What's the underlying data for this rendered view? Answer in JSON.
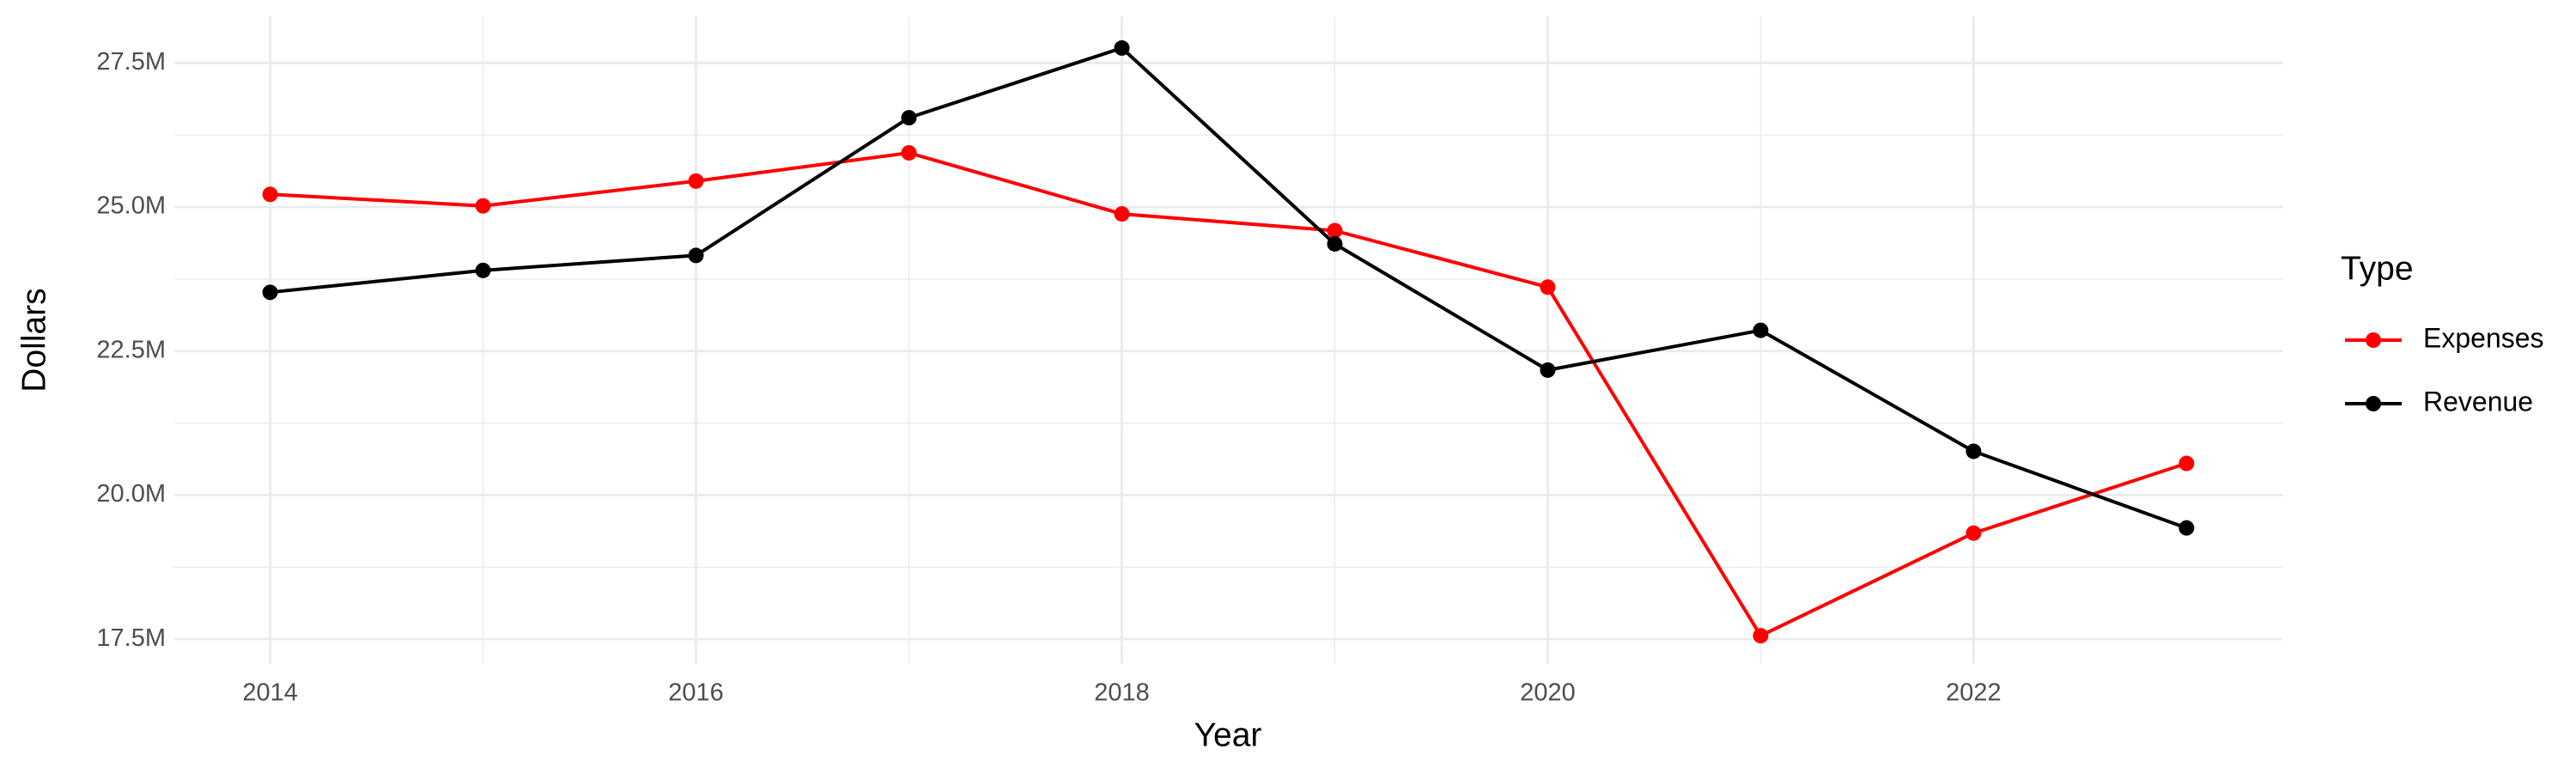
{
  "chart_data": {
    "type": "line",
    "x": [
      2014,
      2015,
      2016,
      2017,
      2018,
      2019,
      2020,
      2021,
      2022,
      2023
    ],
    "xlabel": "Year",
    "ylabel": "Dollars",
    "legend_title": "Type",
    "series": [
      {
        "name": "Expenses",
        "color": "#ff0000",
        "values": [
          25220000,
          25020000,
          25450000,
          25940000,
          24880000,
          24590000,
          23610000,
          17560000,
          19340000,
          20550000
        ]
      },
      {
        "name": "Revenue",
        "color": "#000000",
        "values": [
          23520000,
          23900000,
          24160000,
          26550000,
          27760000,
          24360000,
          22170000,
          22860000,
          20760000,
          19430000
        ]
      }
    ],
    "xlim": [
      2013.55,
      2023.45
    ],
    "xticks": [
      2014,
      2016,
      2018,
      2020,
      2022
    ],
    "ylim": [
      17070000,
      28310000
    ],
    "yticks": [
      {
        "value": 17500000,
        "label": "17.5M"
      },
      {
        "value": 20000000,
        "label": "20.0M"
      },
      {
        "value": 22500000,
        "label": "22.5M"
      },
      {
        "value": 25000000,
        "label": "25.0M"
      },
      {
        "value": 27500000,
        "label": "27.5M"
      }
    ],
    "grid": true,
    "legend": "right"
  }
}
